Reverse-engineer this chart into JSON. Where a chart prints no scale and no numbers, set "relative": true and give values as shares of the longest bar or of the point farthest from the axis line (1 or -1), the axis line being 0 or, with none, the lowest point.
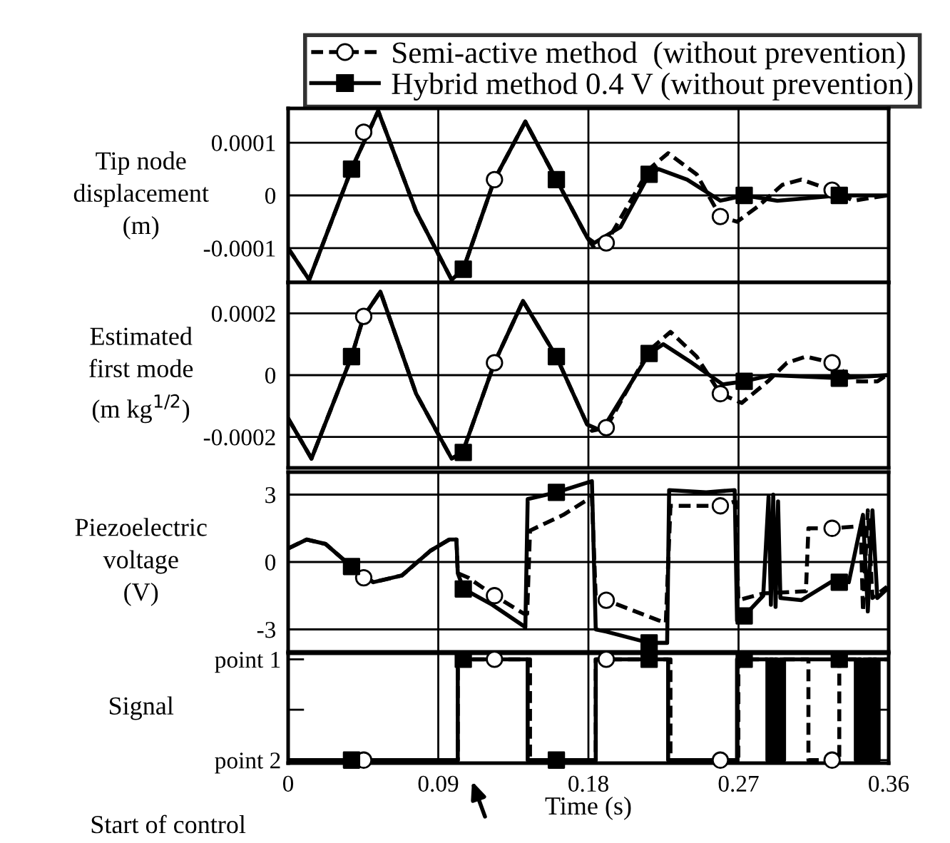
{
  "chart_data": [
    {
      "type": "line",
      "ylabel": "Tip node\ndisplacement\n(m)",
      "xlim": [
        0,
        0.36
      ],
      "xticks": [
        0,
        0.09,
        0.18,
        0.27,
        0.36
      ],
      "ylim": [
        -0.000165,
        0.000165
      ],
      "yticks": [
        -0.0001,
        0,
        0.0001
      ],
      "grid": true,
      "tick_labels": "y",
      "legend": "top",
      "series": [
        {
          "name": "Semi-active method  (without prevention)",
          "line_style": "dashed",
          "color": "#000000",
          "x": [
            0,
            0.0126,
            0.038,
            0.054,
            0.0767,
            0.098,
            0.105,
            0.1237,
            0.1422,
            0.1608,
            0.1793,
            0.1836,
            0.1907,
            0.2164,
            0.2278,
            0.2449,
            0.2591,
            0.2691,
            0.282,
            0.2962,
            0.3076,
            0.3261,
            0.3389,
            0.359
          ],
          "values": [
            -0.0001,
            -0.00016,
            5e-05,
            0.00016,
            -3e-05,
            -0.00016,
            -0.00014,
            3e-05,
            0.00014,
            3e-05,
            -8e-05,
            -0.0001,
            -9e-05,
            5e-05,
            8e-05,
            4e-05,
            -4e-05,
            -5e-05,
            -2e-05,
            2e-05,
            3e-05,
            1e-05,
            -1e-05,
            0
          ]
        },
        {
          "name": "Hybrid method 0.4 V (without prevention)",
          "line_style": "solid",
          "color": "#000000",
          "x": [
            0,
            0.0126,
            0.038,
            0.054,
            0.0767,
            0.098,
            0.105,
            0.1237,
            0.1422,
            0.1608,
            0.1793,
            0.1836,
            0.1992,
            0.2164,
            0.2221,
            0.2392,
            0.2591,
            0.2734,
            0.2933,
            0.3304,
            0.359
          ],
          "values": [
            -0.0001,
            -0.00016,
            5e-05,
            0.00016,
            -3e-05,
            -0.00016,
            -0.00014,
            3e-05,
            0.00014,
            3e-05,
            -8e-05,
            -9e-05,
            -6e-05,
            4e-05,
            5e-05,
            3e-05,
            -1e-05,
            0,
            -1e-05,
            0,
            0
          ]
        },
        {
          "type": "scatter",
          "marker": "circle",
          "color": "#000000",
          "x": [
            0.0453,
            0.1237,
            0.1907,
            0.2591,
            0.3261
          ],
          "values": [
            0.00012,
            3e-05,
            -9e-05,
            -4e-05,
            1e-05
          ]
        },
        {
          "type": "scatter",
          "marker": "square",
          "color": "#000000",
          "x": [
            0.038,
            0.105,
            0.1608,
            0.2164,
            0.2734,
            0.3304
          ],
          "values": [
            5e-05,
            -0.00014,
            3e-05,
            4e-05,
            0,
            0
          ]
        }
      ]
    },
    {
      "type": "line",
      "ylabel": "Estimated\nfirst mode\n(m kg$^{1/2}$)",
      "xlim": [
        0,
        0.36
      ],
      "xticks": [
        0,
        0.09,
        0.18,
        0.27,
        0.36
      ],
      "ylim": [
        -0.0003,
        0.0003
      ],
      "yticks": [
        -0.0002,
        0,
        0.0002
      ],
      "grid": true,
      "tick_labels": "y",
      "series": [
        {
          "line_style": "dashed",
          "color": "#000000",
          "x": [
            0,
            0.014,
            0.038,
            0.0453,
            0.0553,
            0.0767,
            0.098,
            0.1046,
            0.1237,
            0.1408,
            0.1608,
            0.1793,
            0.1821,
            0.1907,
            0.2164,
            0.2292,
            0.2449,
            0.2591,
            0.2719,
            0.2876,
            0.299,
            0.3104,
            0.3261,
            0.3403,
            0.3533,
            0.359
          ],
          "values": [
            -0.00014,
            -0.00027,
            6e-05,
            0.00019,
            0.00027,
            -6e-05,
            -0.00027,
            -0.00025,
            4e-05,
            0.00024,
            6e-05,
            -0.00016,
            -0.00018,
            -0.00017,
            8e-05,
            0.00014,
            6e-05,
            -6e-05,
            -9e-05,
            -2e-05,
            4e-05,
            6e-05,
            4e-05,
            -2e-05,
            -2e-05,
            0
          ]
        },
        {
          "line_style": "solid",
          "color": "#000000",
          "x": [
            0,
            0.014,
            0.038,
            0.0453,
            0.0553,
            0.0767,
            0.098,
            0.1046,
            0.1237,
            0.1408,
            0.1608,
            0.1793,
            0.1879,
            0.2164,
            0.2249,
            0.242,
            0.2605,
            0.2734,
            0.2896,
            0.3304,
            0.359
          ],
          "values": [
            -0.00014,
            -0.00027,
            6e-05,
            0.00019,
            0.00027,
            -6e-05,
            -0.00027,
            -0.00025,
            4e-05,
            0.00024,
            6e-05,
            -0.00016,
            -0.00018,
            7e-05,
            0.0001,
            4e-05,
            -3e-05,
            -2e-05,
            0,
            -1e-05,
            0
          ]
        },
        {
          "type": "scatter",
          "marker": "circle",
          "color": "#000000",
          "x": [
            0.0453,
            0.1237,
            0.1907,
            0.2591,
            0.3261
          ],
          "values": [
            0.00019,
            4e-05,
            -0.00017,
            -6e-05,
            4e-05
          ]
        },
        {
          "type": "scatter",
          "marker": "square",
          "color": "#000000",
          "x": [
            0.038,
            0.105,
            0.1608,
            0.2164,
            0.2734,
            0.3304
          ],
          "values": [
            6e-05,
            -0.00025,
            6e-05,
            7e-05,
            -2e-05,
            -1e-05
          ]
        }
      ]
    },
    {
      "type": "line",
      "ylabel": "Piezoelectric\nvoltage\n(V)",
      "xlim": [
        0,
        0.36
      ],
      "xticks": [
        0,
        0.09,
        0.18,
        0.27,
        0.36
      ],
      "ylim": [
        -4,
        4
      ],
      "yticks": [
        -3,
        0,
        3
      ],
      "grid": true,
      "tick_labels": "y",
      "series": [
        {
          "line_style": "dashed",
          "color": "#000000",
          "x": [
            0,
            0.0111,
            0.0225,
            0.038,
            0.051,
            0.0682,
            0.0853,
            0.0966,
            0.1009,
            0.1017,
            0.108,
            0.1237,
            0.1413,
            0.1433,
            0.145,
            0.165,
            0.1821,
            0.1844,
            0.1907,
            0.2221,
            0.2264,
            0.2292,
            0.2591,
            0.2682,
            0.2699,
            0.2848,
            0.3104,
            0.3119,
            0.3261,
            0.3432,
            0.3446,
            0.3475,
            0.3503,
            0.359
          ],
          "values": [
            0.6,
            1,
            0.8,
            -0.2,
            -0.9,
            -0.6,
            0.5,
            1,
            1,
            -0.5,
            -0.7,
            -1.5,
            -2.3,
            -2.3,
            1.4,
            2.1,
            2.9,
            -1.6,
            -1.7,
            -2.6,
            -2.7,
            2.5,
            2.5,
            2.7,
            -1.7,
            -1.4,
            -1.3,
            1.5,
            1.5,
            1.6,
            -2.2,
            2.3,
            -1.6,
            -1.1
          ]
        },
        {
          "line_style": "solid",
          "color": "#000000",
          "x": [
            0,
            0.0111,
            0.0225,
            0.038,
            0.051,
            0.0682,
            0.0853,
            0.0966,
            0.1009,
            0.1017,
            0.1052,
            0.1223,
            0.1422,
            0.1436,
            0.1608,
            0.1821,
            0.1844,
            0.1907,
            0.2164,
            0.2272,
            0.2284,
            0.2506,
            0.2677,
            0.2691,
            0.2734,
            0.2848,
            0.288,
            0.2894,
            0.2908,
            0.2922,
            0.2937,
            0.2951,
            0.3076,
            0.3275,
            0.3361,
            0.3446,
            0.3475,
            0.3503,
            0.3532,
            0.359
          ],
          "values": [
            0.6,
            1,
            0.8,
            -0.2,
            -0.9,
            -0.6,
            0.5,
            1,
            1,
            -0.5,
            -1.2,
            -1.9,
            -2.9,
            2.8,
            3.1,
            3.6,
            -3,
            -3.1,
            -3.6,
            -3.6,
            3.2,
            3.1,
            3.2,
            -2.6,
            -2.4,
            -1.5,
            2.9,
            -1.9,
            3,
            -2,
            2.7,
            -1.6,
            -1.7,
            -0.8,
            -0.9,
            2.1,
            -2.2,
            2.3,
            -1.6,
            -1.2
          ]
        },
        {
          "type": "scatter",
          "marker": "circle",
          "color": "#000000",
          "x": [
            0.0453,
            0.1237,
            0.1907,
            0.2591,
            0.3261
          ],
          "values": [
            -0.7,
            -1.5,
            -1.7,
            2.5,
            1.5
          ]
        },
        {
          "type": "scatter",
          "marker": "square",
          "color": "#000000",
          "x": [
            0.038,
            0.105,
            0.1608,
            0.2164,
            0.2734,
            0.3304
          ],
          "values": [
            -0.2,
            -1.2,
            3.1,
            -3.6,
            -2.4,
            -0.9
          ]
        }
      ]
    },
    {
      "type": "step",
      "ylabel": "Signal",
      "xlabel": "Time (s)",
      "xlim": [
        0,
        0.36
      ],
      "xticks": [
        0,
        0.09,
        0.18,
        0.27,
        0.36
      ],
      "relative": true,
      "y_categories": [
        "point 1",
        null,
        "point 2"
      ],
      "grid": "x",
      "annotations": [
        "Start of control"
      ],
      "series": [
        {
          "line_style": "dashed",
          "color": "#000000",
          "x": [
            0,
            0.1017,
            0.145,
            0.1844,
            0.2292,
            0.2699,
            0.3119,
            0.3304,
            0.36
          ],
          "values": [
            0,
            1,
            0,
            1,
            0,
            1,
            0,
            1,
            1
          ]
        },
        {
          "line_style": "solid",
          "color": "#000000",
          "x": [
            0,
            0.1017,
            0.1436,
            0.1844,
            0.2278,
            0.2691,
            0.2873,
            0.289,
            0.2905,
            0.292,
            0.2935,
            0.295,
            0.2965,
            0.2973,
            0.3403,
            0.342,
            0.3435,
            0.345,
            0.3465,
            0.348,
            0.3495,
            0.351,
            0.3525,
            0.354,
            0.3559,
            0.36
          ],
          "values": [
            0,
            1,
            0,
            1,
            0,
            1,
            0,
            1,
            0,
            1,
            0,
            1,
            0,
            1,
            0,
            1,
            0,
            1,
            0,
            1,
            0,
            1,
            0,
            1,
            1,
            1
          ]
        },
        {
          "type": "scatter",
          "marker": "circle",
          "color": "#000000",
          "x": [
            0.0453,
            0.1237,
            0.1907,
            0.2591,
            0.3261
          ],
          "values": [
            0,
            1,
            1,
            0,
            0
          ]
        },
        {
          "type": "scatter",
          "marker": "square",
          "color": "#000000",
          "x": [
            0.038,
            0.105,
            0.1608,
            0.2164,
            0.2734,
            0.3304
          ],
          "values": [
            0,
            1,
            0,
            1,
            1,
            1
          ]
        }
      ]
    }
  ]
}
